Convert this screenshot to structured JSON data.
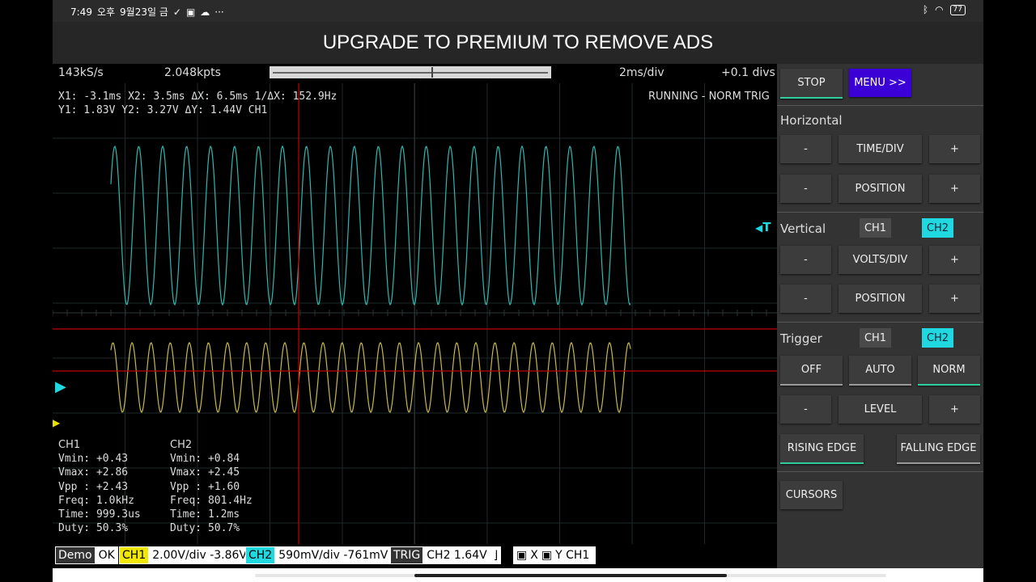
{
  "statusbar": {
    "time": "7:49",
    "ampm": "오후",
    "date": "9월23일 금",
    "battery": "77"
  },
  "banner": {
    "text": "UPGRADE TO PREMIUM TO REMOVE ADS"
  },
  "scope": {
    "sample_rate": "143kS/s",
    "points": "2.048kpts",
    "timebase": "2ms/div",
    "h_offset": "+0.1 divs",
    "cursor_line1": "X1: -3.1ms  X2: 3.5ms  ΔX: 6.5ms  1/ΔX: 152.9Hz",
    "cursor_line2": "Y1: 1.83V  Y2: 3.27V  ΔY: 1.44V CH1",
    "status": "RUNNING - NORM TRIG",
    "ch1_color": "#c8c400",
    "ch2_color": "#1ec8cc",
    "trace_cyan": "#2fb8b0",
    "trace_yellow": "#c8b84a",
    "cursor_color": "#c00000",
    "trigger_marker_label": "T"
  },
  "measurements": {
    "ch1": {
      "title": "CH1",
      "vmin": "Vmin: +0.43",
      "vmax": "Vmax: +2.86",
      "vpp": "Vpp : +2.43",
      "freq": "Freq: 1.0kHz",
      "time": "Time: 999.3us",
      "duty": "Duty: 50.3%"
    },
    "ch2": {
      "title": "CH2",
      "vmin": "Vmin: +0.84",
      "vmax": "Vmax: +2.45",
      "vpp": "Vpp : +1.60",
      "freq": "Freq: 801.4Hz",
      "time": "Time: 1.2ms",
      "duty": "Duty: 50.7%"
    }
  },
  "bottombar": {
    "demo_tag": "Demo",
    "demo_val": "OK",
    "ch1_tag": "CH1",
    "ch1_val": "2.00V/div  -3.86V",
    "ch2_tag": "CH2",
    "ch2_val": "590mV/div  -761mV",
    "trig_tag": "TRIG",
    "trig_val": "CH2  1.64V",
    "x_label": "X",
    "y_label": "Y  CH1"
  },
  "panel": {
    "stop": "STOP",
    "menu": "MENU >>",
    "horizontal": "Horizontal",
    "minus": "-",
    "plus": "+",
    "time_div": "TIME/DIV",
    "position": "POSITION",
    "vertical": "Vertical",
    "ch1": "CH1",
    "ch2": "CH2",
    "volts_div": "VOLTS/DIV",
    "trigger": "Trigger",
    "off": "OFF",
    "auto": "AUTO",
    "norm": "NORM",
    "level": "LEVEL",
    "rising": "RISING EDGE",
    "falling": "FALLING EDGE",
    "cursors": "CURSORS"
  }
}
